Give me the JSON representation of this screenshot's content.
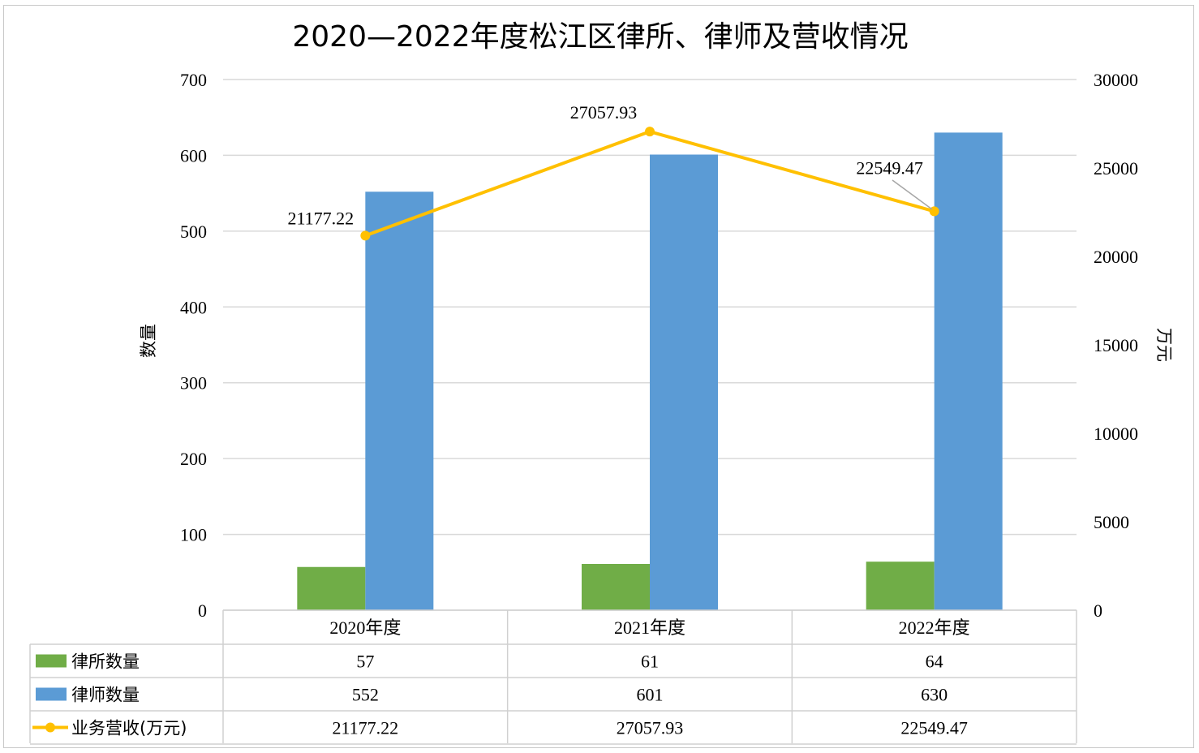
{
  "chart_data": {
    "type": "bar",
    "title": "2020—2022年度松江区律所、律师及营收情况",
    "categories": [
      "2020年度",
      "2021年度",
      "2022年度"
    ],
    "series": [
      {
        "name": "律所数量",
        "type": "bar",
        "axis": "left",
        "color": "#70AD47",
        "values": [
          57,
          61,
          64
        ]
      },
      {
        "name": "律师数量",
        "type": "bar",
        "axis": "left",
        "color": "#5B9BD5",
        "values": [
          552,
          601,
          630
        ]
      },
      {
        "name": "业务营收(万元)",
        "type": "line",
        "axis": "right",
        "color": "#FFC000",
        "values": [
          21177.22,
          27057.93,
          22549.47
        ]
      }
    ],
    "data_labels": [
      "21177.22",
      "27057.93",
      "22549.47"
    ],
    "table_values": [
      [
        "57",
        "61",
        "64"
      ],
      [
        "552",
        "601",
        "630"
      ],
      [
        "21177.22",
        "27057.93",
        "22549.47"
      ]
    ],
    "ylabel_left": "数量",
    "ylabel_right": "万元",
    "ylim_left": [
      0,
      700
    ],
    "ylim_right": [
      0,
      30000
    ],
    "yticks_left": [
      "0",
      "100",
      "200",
      "300",
      "400",
      "500",
      "600",
      "700"
    ],
    "yticks_right": [
      "0",
      "5000",
      "10000",
      "15000",
      "20000",
      "25000",
      "30000"
    ],
    "grid": true,
    "legend": "data-table"
  }
}
